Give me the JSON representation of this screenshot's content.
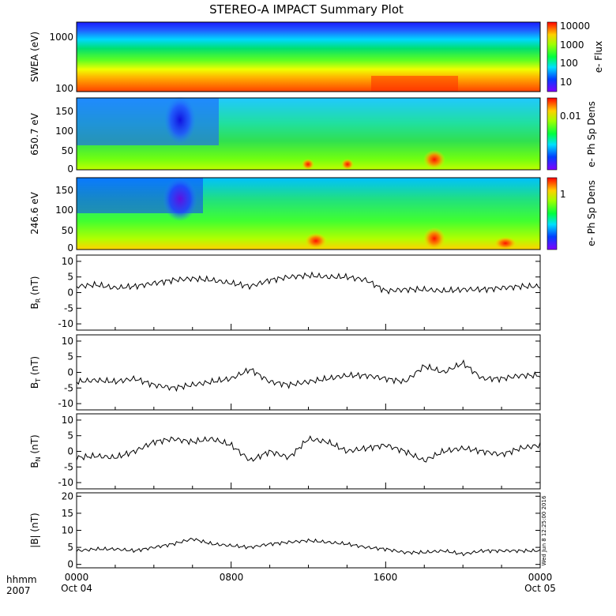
{
  "chart_data": [
    {
      "type": "heatmap",
      "title": "STEREO-A IMPACT Summary Plot",
      "ylabel": "SWEA (eV)",
      "ylim": [
        100,
        2000
      ],
      "ylog": true,
      "yticks": [
        "1000",
        "100"
      ],
      "colorbar_label": "e- Flux",
      "colorbar_ticks": [
        "10000",
        "1000",
        "100",
        "10"
      ],
      "colorscale": "rainbow",
      "bands": [
        {
          "from_eV": 1500,
          "to_eV": 2000,
          "level": "blue"
        },
        {
          "from_eV": 700,
          "to_eV": 1500,
          "level": "cyan"
        },
        {
          "from_eV": 350,
          "to_eV": 700,
          "level": "green"
        },
        {
          "from_eV": 150,
          "to_eV": 350,
          "level": "yellow"
        },
        {
          "from_eV": 100,
          "to_eV": 150,
          "level": "orange-red"
        }
      ]
    },
    {
      "type": "heatmap",
      "ylabel": "650.7 eV",
      "ylim": [
        0,
        180
      ],
      "yticks": [
        "150",
        "100",
        "50",
        "0"
      ],
      "colorbar_label": "e- Ph Sp Dens",
      "colorbar_ticks": [
        "0.01"
      ],
      "colorscale": "rainbow",
      "features": [
        {
          "hour": 1.0,
          "level": "blue"
        },
        {
          "hour": 5.0,
          "level": "dark-blue"
        },
        {
          "hour": 12.0,
          "level": "green"
        },
        {
          "hour": 18.3,
          "level": "red"
        }
      ]
    },
    {
      "type": "heatmap",
      "ylabel": "246.6 eV",
      "ylim": [
        0,
        180
      ],
      "yticks": [
        "150",
        "100",
        "50",
        "0"
      ],
      "colorbar_label": "e- Ph Sp Dens",
      "colorbar_ticks": [
        "1"
      ],
      "colorscale": "rainbow",
      "features": [
        {
          "hour": 1.0,
          "level": "blue"
        },
        {
          "hour": 5.0,
          "level": "purple"
        },
        {
          "hour": 13.0,
          "level": "orange"
        },
        {
          "hour": 18.3,
          "level": "red"
        }
      ]
    },
    {
      "type": "line",
      "ylabel": "B_R (nT)",
      "ylim": [
        -12,
        12
      ],
      "yticks": [
        10,
        5,
        0,
        -5,
        -10
      ],
      "x_hours": [
        0,
        1,
        2,
        3,
        4,
        5,
        6,
        7,
        8,
        9,
        10,
        11,
        12,
        13,
        14,
        15,
        16,
        17,
        18,
        19,
        20,
        21,
        22,
        23,
        24
      ],
      "values": [
        2,
        2.5,
        1.5,
        2,
        3,
        4,
        4.5,
        4,
        3,
        2,
        4,
        5,
        5.5,
        5,
        5,
        4,
        0.5,
        1,
        1,
        0.5,
        1,
        1,
        1.5,
        2,
        2
      ]
    },
    {
      "type": "line",
      "ylabel": "B_T (nT)",
      "ylim": [
        -12,
        12
      ],
      "yticks": [
        10,
        5,
        0,
        -5,
        -10
      ],
      "x_hours": [
        0,
        1,
        2,
        3,
        4,
        5,
        6,
        7,
        8,
        9,
        10,
        11,
        12,
        13,
        14,
        15,
        16,
        17,
        18,
        19,
        20,
        21,
        22,
        23,
        24
      ],
      "values": [
        -3,
        -2.5,
        -3,
        -2,
        -4,
        -5,
        -4,
        -3,
        -2,
        1,
        -3,
        -4,
        -3,
        -2,
        -1,
        -1,
        -2,
        -3,
        2,
        0,
        3,
        -2,
        -2,
        -1,
        -1
      ]
    },
    {
      "type": "line",
      "ylabel": "B_N (nT)",
      "ylim": [
        -12,
        12
      ],
      "yticks": [
        10,
        5,
        0,
        -5,
        -10
      ],
      "x_hours": [
        0,
        1,
        2,
        3,
        4,
        5,
        6,
        7,
        8,
        9,
        10,
        11,
        12,
        13,
        14,
        15,
        16,
        17,
        18,
        19,
        20,
        21,
        22,
        23,
        24
      ],
      "values": [
        -2,
        -1.5,
        -2,
        0,
        3,
        4,
        3,
        4,
        2,
        -3,
        0,
        -2,
        4,
        3,
        0,
        1,
        2,
        0,
        -3,
        0,
        1,
        0,
        -1,
        1,
        2
      ]
    },
    {
      "type": "line",
      "ylabel": "|B| (nT)",
      "ylim": [
        -1,
        21
      ],
      "yticks": [
        20,
        15,
        10,
        5,
        0
      ],
      "x_hours": [
        0,
        1,
        2,
        3,
        4,
        5,
        6,
        7,
        8,
        9,
        10,
        11,
        12,
        13,
        14,
        15,
        16,
        17,
        18,
        19,
        20,
        21,
        22,
        23,
        24
      ],
      "values": [
        4,
        4.5,
        4.5,
        4,
        5,
        6,
        7.5,
        6,
        5.5,
        5,
        6,
        6.5,
        7,
        6.5,
        6,
        5,
        4.5,
        3.5,
        3.5,
        4,
        3,
        4,
        4,
        4,
        4
      ]
    }
  ],
  "xaxis": {
    "ticks": [
      "0000",
      "0800",
      "1600",
      "0000"
    ],
    "dates": [
      "Oct 04",
      "Oct 05"
    ],
    "hhmm_label": "hhmm",
    "year_label": "2007"
  },
  "timestamp": "Wed Jun 8 12:25:00 2016"
}
